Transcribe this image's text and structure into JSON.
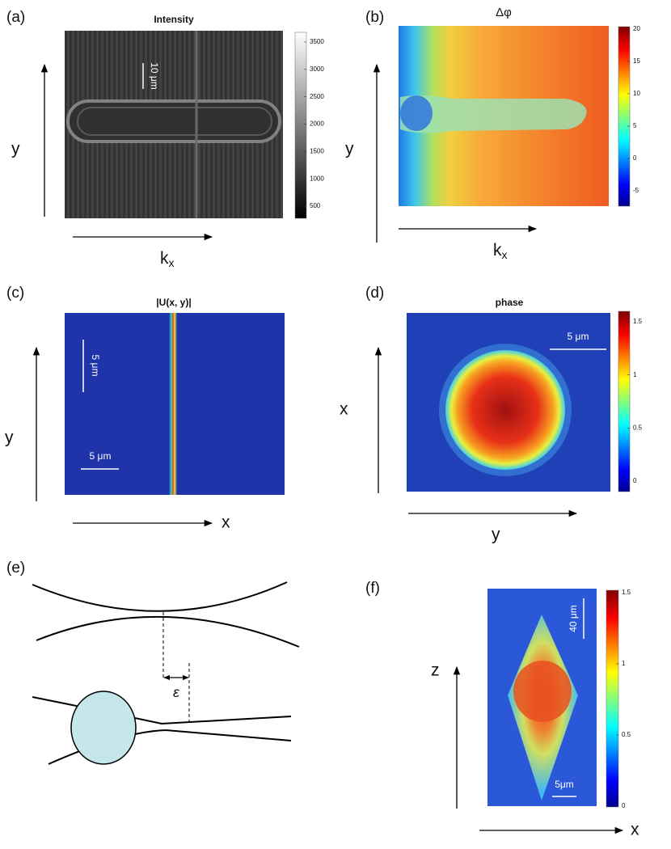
{
  "panels": {
    "a": {
      "label": "(a)",
      "title": "Intensity",
      "scale_bar": "10 μm",
      "horizontal_axis": {
        "text": "k",
        "subscript": "x"
      },
      "vertical_axis": "y",
      "colorbar_ticks": [
        3500,
        3000,
        2500,
        2000,
        1500,
        1000,
        500
      ]
    },
    "b": {
      "label": "(b)",
      "title": "Δφ",
      "horizontal_axis": {
        "text": "k",
        "subscript": "x"
      },
      "vertical_axis": "y",
      "colorbar_ticks": [
        20,
        15,
        10,
        5,
        0,
        -5
      ]
    },
    "c": {
      "label": "(c)",
      "title": "|U(x, y)|",
      "scale_bars": [
        "5 μm",
        "5 μm"
      ],
      "horizontal_axis": "x",
      "vertical_axis": "y"
    },
    "d": {
      "label": "(d)",
      "title": "phase",
      "scale_bar": "5 μm",
      "horizontal_axis": "y",
      "vertical_axis": "x",
      "colorbar_ticks": [
        1.5,
        1,
        0.5,
        0
      ]
    },
    "e": {
      "label": "(e)",
      "symbol": "ε"
    },
    "f": {
      "label": "(f)",
      "scale_bars": [
        "40 μm",
        "5μm"
      ],
      "horizontal_axis": "x",
      "vertical_axis": "z",
      "colorbar_ticks": [
        1.5,
        1,
        0.5,
        0
      ]
    }
  }
}
